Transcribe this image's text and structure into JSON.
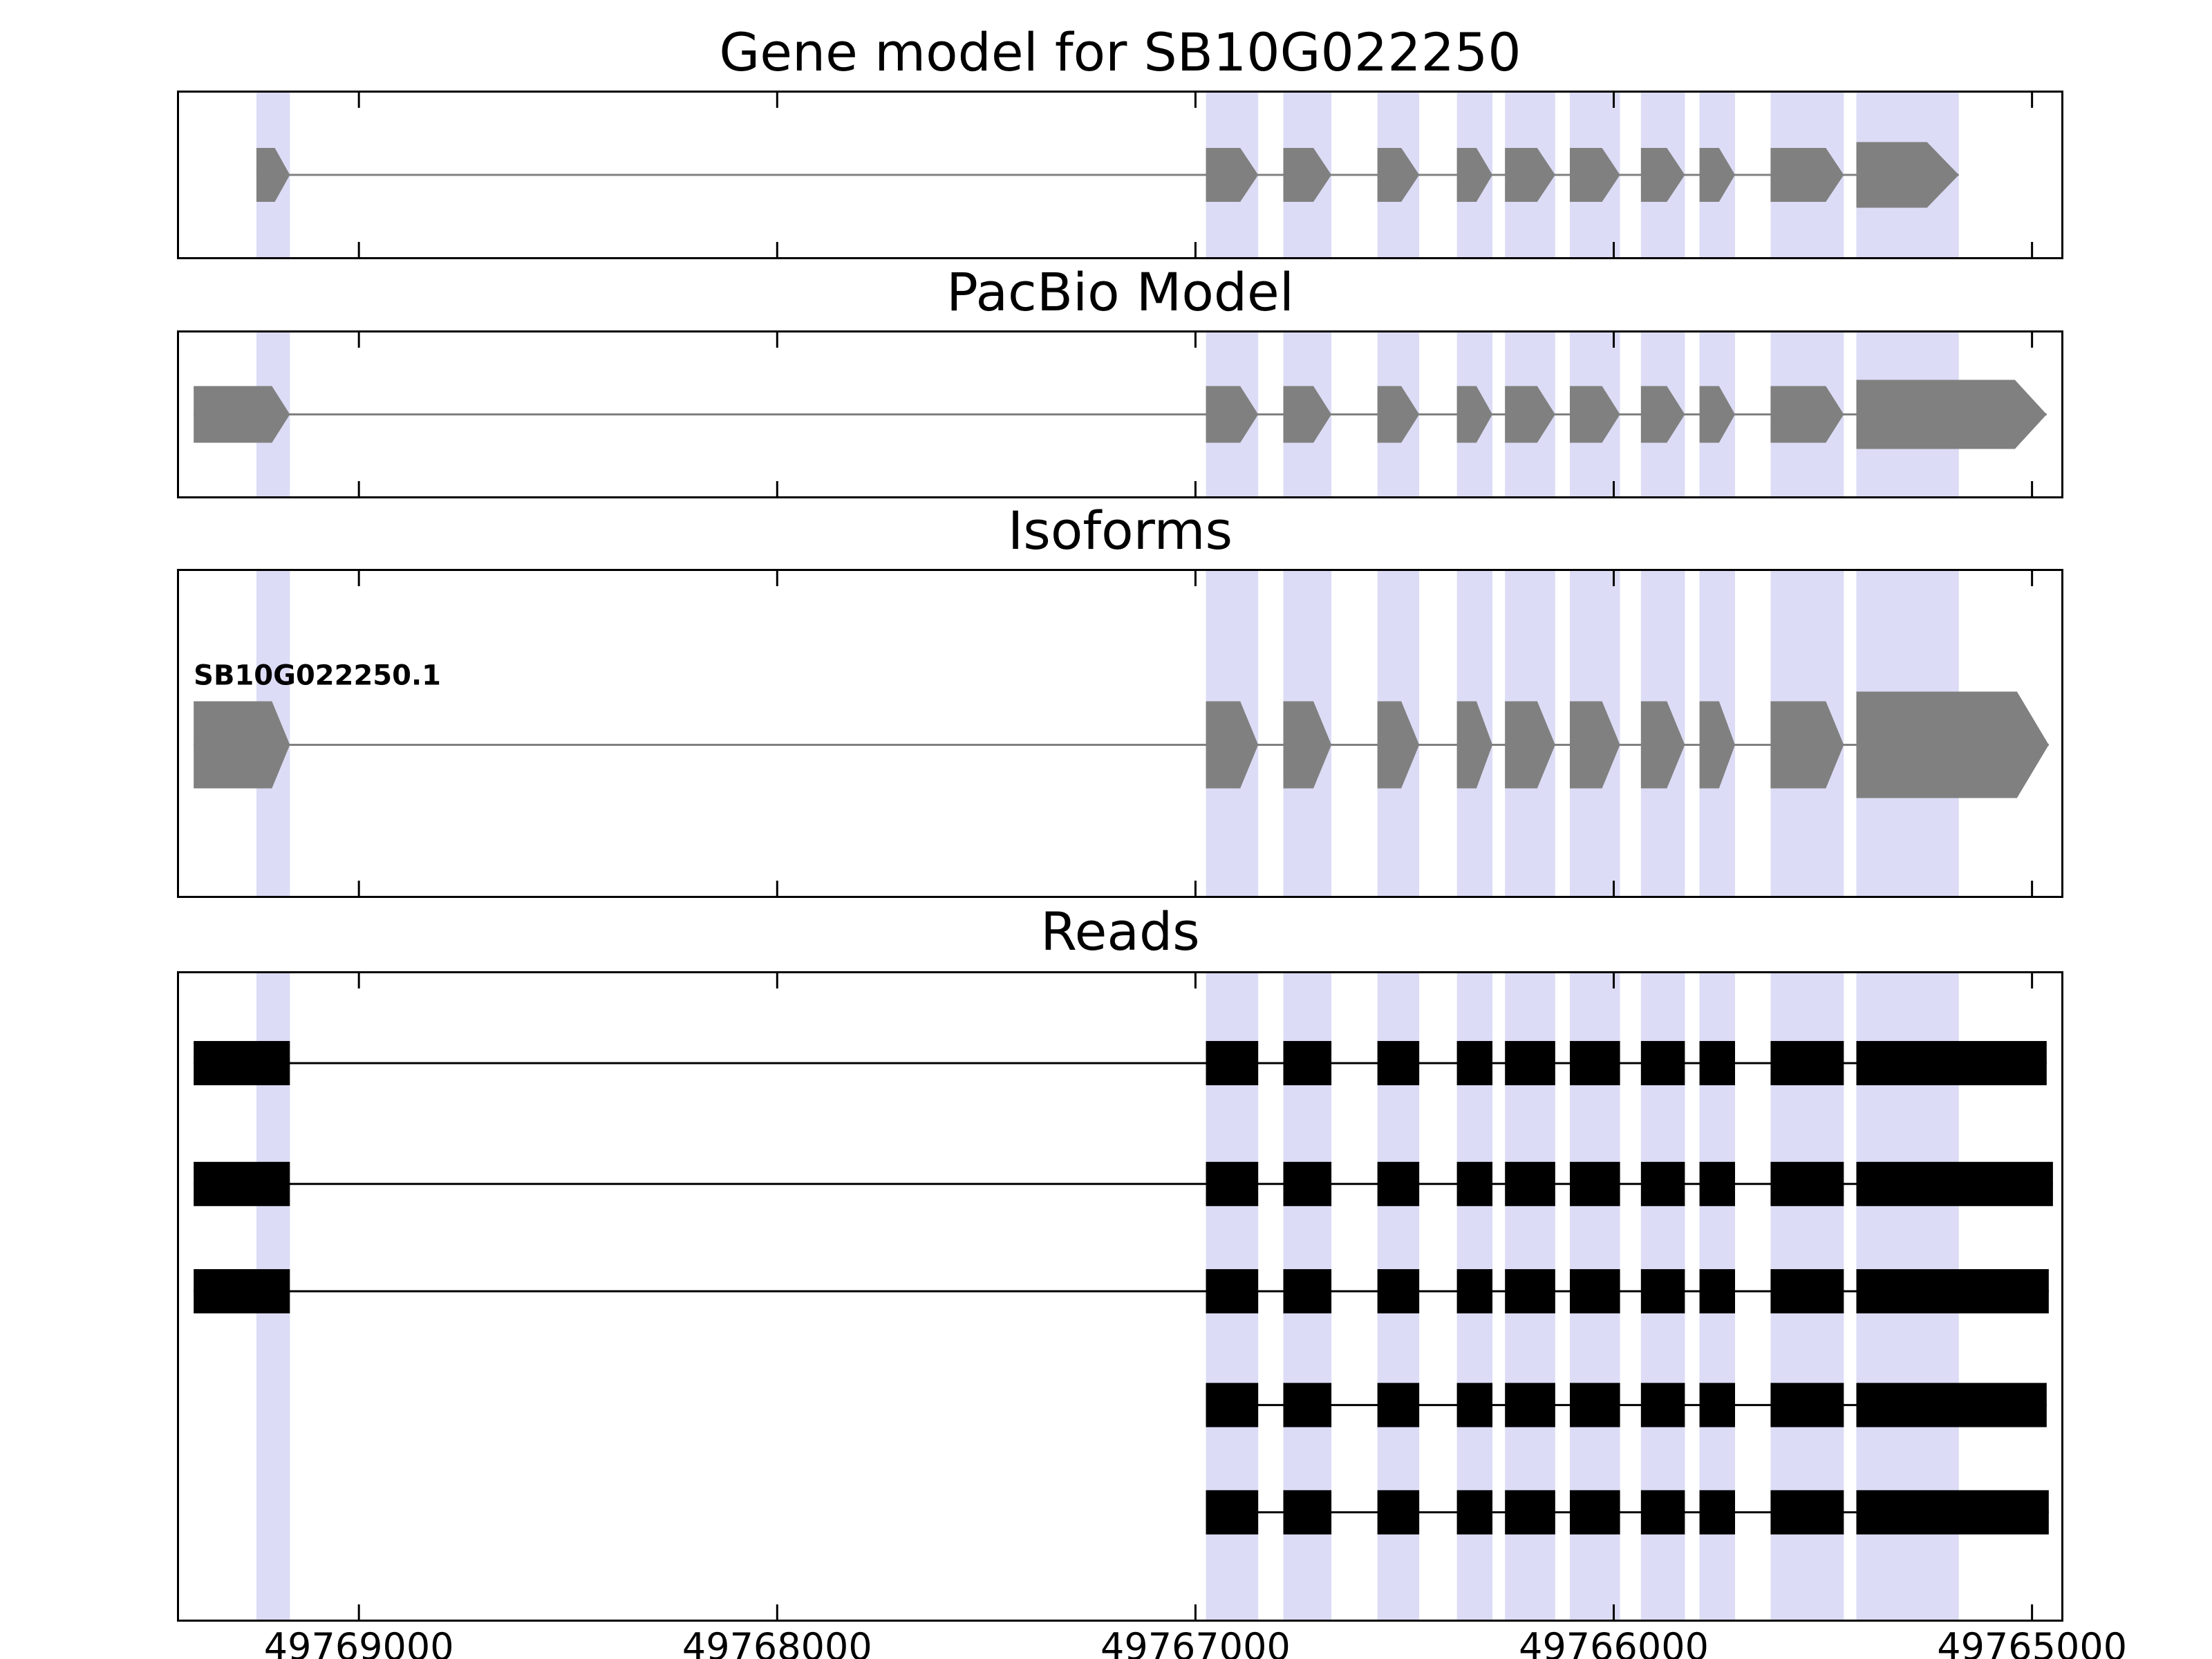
{
  "chart_data": {
    "type": "gene-model-tracks",
    "title": "Gene model for SB10G022250",
    "figure": {
      "background": "#ffffff",
      "border_color": "#000000",
      "band_color": "#dcdcf6",
      "model_color": "#808080",
      "read_color": "#000000"
    },
    "axis": {
      "domain": [
        49769430,
        49764930
      ],
      "direction": "decreasing-left-to-right",
      "ticks": [
        49769000,
        49768000,
        49767000,
        49766000,
        49765000
      ],
      "tick_labels": [
        "49769000",
        "49768000",
        "49767000",
        "49766000",
        "49765000"
      ]
    },
    "bands": [
      [
        49769245,
        49769165
      ],
      [
        49766975,
        49766850
      ],
      [
        49766790,
        49766675
      ],
      [
        49766565,
        49766465
      ],
      [
        49766375,
        49766290
      ],
      [
        49766260,
        49766140
      ],
      [
        49766105,
        49765985
      ],
      [
        49765935,
        49765830
      ],
      [
        49765795,
        49765710
      ],
      [
        49765625,
        49765450
      ],
      [
        49765420,
        49765175
      ]
    ],
    "panels": [
      {
        "id": "gene-model",
        "title": "Gene model for SB10G022250",
        "style": "model",
        "tracks": [
          {
            "exons": [
              [
                49769245,
                49769165
              ],
              [
                49766975,
                49766850
              ],
              [
                49766790,
                49766675
              ],
              [
                49766565,
                49766465
              ],
              [
                49766375,
                49766290
              ],
              [
                49766260,
                49766140
              ],
              [
                49766105,
                49765985
              ],
              [
                49765935,
                49765830
              ],
              [
                49765795,
                49765710
              ],
              [
                49765625,
                49765450
              ],
              [
                49765420,
                49765175
              ]
            ]
          }
        ]
      },
      {
        "id": "pacbio",
        "title": "PacBio Model",
        "style": "model",
        "tracks": [
          {
            "exons": [
              [
                49769395,
                49769165
              ],
              [
                49766975,
                49766850
              ],
              [
                49766790,
                49766675
              ],
              [
                49766565,
                49766465
              ],
              [
                49766375,
                49766290
              ],
              [
                49766260,
                49766140
              ],
              [
                49766105,
                49765985
              ],
              [
                49765935,
                49765830
              ],
              [
                49765795,
                49765710
              ],
              [
                49765625,
                49765450
              ],
              [
                49765420,
                49764965
              ]
            ]
          }
        ]
      },
      {
        "id": "isoforms",
        "title": "Isoforms",
        "style": "model",
        "tracks": [
          {
            "label": "SB10G022250.1",
            "exons": [
              [
                49769395,
                49769165
              ],
              [
                49766975,
                49766850
              ],
              [
                49766790,
                49766675
              ],
              [
                49766565,
                49766465
              ],
              [
                49766375,
                49766290
              ],
              [
                49766260,
                49766140
              ],
              [
                49766105,
                49765985
              ],
              [
                49765935,
                49765830
              ],
              [
                49765795,
                49765710
              ],
              [
                49765625,
                49765450
              ],
              [
                49765420,
                49764960
              ]
            ]
          }
        ]
      },
      {
        "id": "reads",
        "title": "Reads",
        "style": "read",
        "tracks": [
          {
            "exons": [
              [
                49769395,
                49769165
              ],
              [
                49766975,
                49766850
              ],
              [
                49766790,
                49766675
              ],
              [
                49766565,
                49766465
              ],
              [
                49766375,
                49766290
              ],
              [
                49766260,
                49766140
              ],
              [
                49766105,
                49765985
              ],
              [
                49765935,
                49765830
              ],
              [
                49765795,
                49765710
              ],
              [
                49765625,
                49765450
              ],
              [
                49765420,
                49764965
              ]
            ]
          },
          {
            "exons": [
              [
                49769395,
                49769165
              ],
              [
                49766975,
                49766850
              ],
              [
                49766790,
                49766675
              ],
              [
                49766565,
                49766465
              ],
              [
                49766375,
                49766290
              ],
              [
                49766260,
                49766140
              ],
              [
                49766105,
                49765985
              ],
              [
                49765935,
                49765830
              ],
              [
                49765795,
                49765710
              ],
              [
                49765625,
                49765450
              ],
              [
                49765420,
                49764950
              ]
            ]
          },
          {
            "exons": [
              [
                49769395,
                49769165
              ],
              [
                49766975,
                49766850
              ],
              [
                49766790,
                49766675
              ],
              [
                49766565,
                49766465
              ],
              [
                49766375,
                49766290
              ],
              [
                49766260,
                49766140
              ],
              [
                49766105,
                49765985
              ],
              [
                49765935,
                49765830
              ],
              [
                49765795,
                49765710
              ],
              [
                49765625,
                49765450
              ],
              [
                49765420,
                49764960
              ]
            ]
          },
          {
            "exons": [
              [
                49766975,
                49766850
              ],
              [
                49766790,
                49766675
              ],
              [
                49766565,
                49766465
              ],
              [
                49766375,
                49766290
              ],
              [
                49766260,
                49766140
              ],
              [
                49766105,
                49765985
              ],
              [
                49765935,
                49765830
              ],
              [
                49765795,
                49765710
              ],
              [
                49765625,
                49765450
              ],
              [
                49765420,
                49764965
              ]
            ]
          },
          {
            "exons": [
              [
                49766975,
                49766850
              ],
              [
                49766790,
                49766675
              ],
              [
                49766565,
                49766465
              ],
              [
                49766375,
                49766290
              ],
              [
                49766260,
                49766140
              ],
              [
                49766105,
                49765985
              ],
              [
                49765935,
                49765830
              ],
              [
                49765795,
                49765710
              ],
              [
                49765625,
                49765450
              ],
              [
                49765420,
                49764960
              ]
            ]
          }
        ]
      }
    ]
  }
}
